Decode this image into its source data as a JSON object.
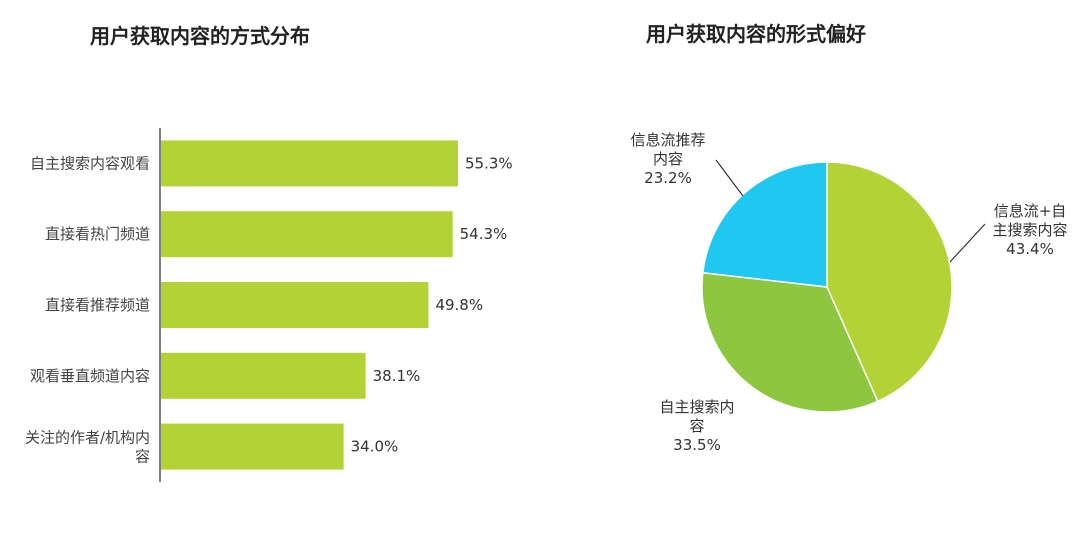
{
  "chart_data": [
    {
      "type": "bar",
      "orientation": "horizontal",
      "title": "用户获取内容的方式分布",
      "categories": [
        "自主搜索内容观看",
        "直接看热门频道",
        "直接看推荐频道",
        "观看垂直频道内容",
        "关注的作者/机构内容"
      ],
      "category_lines": [
        [
          "自主搜索内容观看"
        ],
        [
          "直接看热门频道"
        ],
        [
          "直接看推荐频道"
        ],
        [
          "观看垂直频道内容"
        ],
        [
          "关注的作者/机构内",
          "容"
        ]
      ],
      "values": [
        55.3,
        54.3,
        49.8,
        38.1,
        34.0
      ],
      "value_labels": [
        "55.3%",
        "54.3%",
        "49.8%",
        "38.1%",
        "34.0%"
      ],
      "unit": "%",
      "color": "#b2d235",
      "grid": false
    },
    {
      "type": "pie",
      "title": "用户获取内容的形式偏好",
      "slices": [
        {
          "label_lines": [
            "信息流+自",
            "主搜索内容"
          ],
          "value": 43.4,
          "value_label": "43.4%",
          "color": "#b2d235"
        },
        {
          "label_lines": [
            "自主搜索内",
            "容"
          ],
          "value": 33.5,
          "value_label": "33.5%",
          "color": "#8dc63f"
        },
        {
          "label_lines": [
            "信息流推荐",
            "内容"
          ],
          "value": 23.2,
          "value_label": "23.2%",
          "color": "#1fc8f1"
        }
      ]
    }
  ]
}
